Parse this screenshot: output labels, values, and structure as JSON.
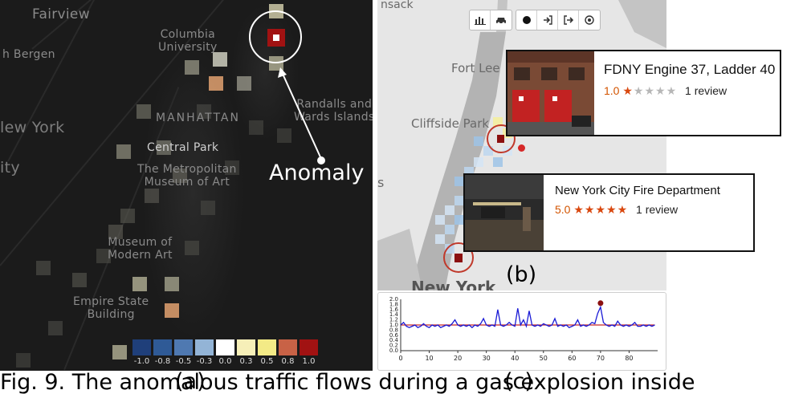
{
  "panel_a": {
    "labels": {
      "fairview": "Fairview",
      "bergen": "h Bergen",
      "columbia": "Columbia\nUniversity",
      "manhattan": "MANHATTAN",
      "randalls": "Randalls and\nWards Islands",
      "new_york": "lew York",
      "ity": "ity",
      "central_park": "Central Park",
      "met": "The Metropolitan\nMuseum of Art",
      "moma": "Museum of\nModern Art",
      "esb": "Empire State\nBuilding"
    },
    "anomaly_label": "Anomaly",
    "legend": [
      {
        "label": "-1.0",
        "color": "#1f3f7a"
      },
      {
        "label": "-0.8",
        "color": "#2f5a96"
      },
      {
        "label": "-0.5",
        "color": "#4f79b1"
      },
      {
        "label": "-0.3",
        "color": "#93b4d6"
      },
      {
        "label": "0.0",
        "color": "#ffffff"
      },
      {
        "label": "0.3",
        "color": "#f6efb8"
      },
      {
        "label": "0.5",
        "color": "#f3ea86"
      },
      {
        "label": "0.8",
        "color": "#c86246"
      },
      {
        "label": "1.0",
        "color": "#a11212"
      }
    ],
    "letter": "(a)"
  },
  "panel_b": {
    "labels": {
      "nsack": "nsack",
      "fort_lee": "Fort Lee",
      "cliffside": "Cliffside Park",
      "new_york": "New York",
      "s": "s"
    },
    "toolbar": {
      "chart_icon": "bar-chart-icon",
      "car_icon": "car-icon",
      "dot_icon": "dot-icon",
      "enter_icon": "sign-in-icon",
      "exit_icon": "sign-out-icon",
      "target_icon": "target-icon"
    },
    "cards": [
      {
        "title": "FDNY Engine 37, Ladder 40",
        "rating": "1.0",
        "stars_on": "★",
        "stars_off": "★★★★",
        "reviews": "1 review"
      },
      {
        "title": "New York City Fire Department",
        "rating": "5.0",
        "stars_on": "★★★★★",
        "stars_off": "",
        "reviews": "1 review"
      }
    ],
    "letter": "(b)"
  },
  "panel_c": {
    "letter": "(c)"
  },
  "caption": {
    "text": "Fig. 9.  The anomalous traffic flows during a gas explosion inside"
  },
  "chart_data": {
    "type": "line",
    "title": "",
    "xlabel": "",
    "ylabel": "",
    "xlim": [
      0,
      90
    ],
    "ylim": [
      0.0,
      2.0
    ],
    "x_ticks": [
      0,
      10,
      20,
      30,
      40,
      50,
      60,
      70,
      80
    ],
    "y_ticks": [
      "0.0",
      "0.2",
      "0.4",
      "0.6",
      "0.8",
      "1.0",
      "1.2",
      "1.4",
      "1.6",
      "1.8",
      "2.0"
    ],
    "x": [
      0,
      1,
      2,
      3,
      4,
      5,
      6,
      7,
      8,
      9,
      10,
      11,
      12,
      13,
      14,
      15,
      16,
      17,
      18,
      19,
      20,
      21,
      22,
      23,
      24,
      25,
      26,
      27,
      28,
      29,
      30,
      31,
      32,
      33,
      34,
      35,
      36,
      37,
      38,
      39,
      40,
      41,
      42,
      43,
      44,
      45,
      46,
      47,
      48,
      49,
      50,
      51,
      52,
      53,
      54,
      55,
      56,
      57,
      58,
      59,
      60,
      61,
      62,
      63,
      64,
      65,
      66,
      67,
      68,
      69,
      70,
      71,
      72,
      73,
      74,
      75,
      76,
      77,
      78,
      79,
      80,
      81,
      82,
      83,
      84,
      85,
      86,
      87,
      88,
      89
    ],
    "series": [
      {
        "color": "#1a1ad6",
        "values": [
          1.0,
          1.1,
          0.95,
          0.9,
          0.95,
          1.0,
          0.9,
          0.95,
          1.05,
          0.95,
          0.9,
          1.0,
          0.95,
          1.0,
          0.9,
          0.95,
          1.0,
          0.95,
          1.05,
          1.2,
          1.0,
          0.95,
          1.0,
          0.95,
          1.0,
          0.9,
          1.0,
          0.95,
          1.05,
          1.25,
          1.0,
          0.95,
          1.0,
          0.95,
          1.6,
          1.0,
          0.95,
          1.0,
          1.1,
          1.0,
          0.95,
          1.65,
          1.0,
          1.2,
          0.95,
          1.55,
          1.0,
          0.95,
          1.0,
          0.95,
          1.05,
          1.0,
          0.95,
          1.0,
          1.25,
          0.95,
          1.0,
          0.95,
          1.0,
          0.9,
          0.95,
          1.0,
          1.2,
          0.95,
          1.0,
          0.95,
          1.0,
          1.1,
          1.05,
          1.45,
          1.7,
          1.1,
          1.0,
          0.95,
          1.0,
          0.95,
          1.15,
          1.0,
          0.95,
          1.0,
          0.95,
          1.0,
          1.1,
          0.95,
          0.95,
          1.0,
          0.95,
          1.0,
          0.95,
          1.0
        ]
      },
      {
        "color": "#c62828",
        "values": [
          1.0,
          1.0,
          1.0,
          1.0,
          1.0,
          1.0,
          1.0,
          1.0,
          1.0,
          1.0,
          1.0,
          1.0,
          1.0,
          1.0,
          1.0,
          1.0,
          1.0,
          1.0,
          1.0,
          1.0,
          1.0,
          1.0,
          1.0,
          1.0,
          1.0,
          1.0,
          1.0,
          1.0,
          1.0,
          1.0,
          1.0,
          1.0,
          1.0,
          1.0,
          1.0,
          1.0,
          1.0,
          1.0,
          1.0,
          1.0,
          1.0,
          1.0,
          1.0,
          1.0,
          1.0,
          1.0,
          1.0,
          1.0,
          1.0,
          1.0,
          1.0,
          1.0,
          1.0,
          1.0,
          1.0,
          1.0,
          1.0,
          1.0,
          1.0,
          1.0,
          1.0,
          1.0,
          1.0,
          1.0,
          1.0,
          1.0,
          1.0,
          1.0,
          1.0,
          1.0,
          1.0,
          1.0,
          1.0,
          1.0,
          1.0,
          1.0,
          1.0,
          1.0,
          1.0,
          1.0,
          1.0,
          1.0,
          1.0,
          1.0,
          1.0,
          1.0,
          1.0,
          1.0,
          1.0,
          1.0
        ]
      }
    ],
    "highlight": {
      "x": 70,
      "y": 1.85,
      "color": "#8b1010"
    }
  }
}
